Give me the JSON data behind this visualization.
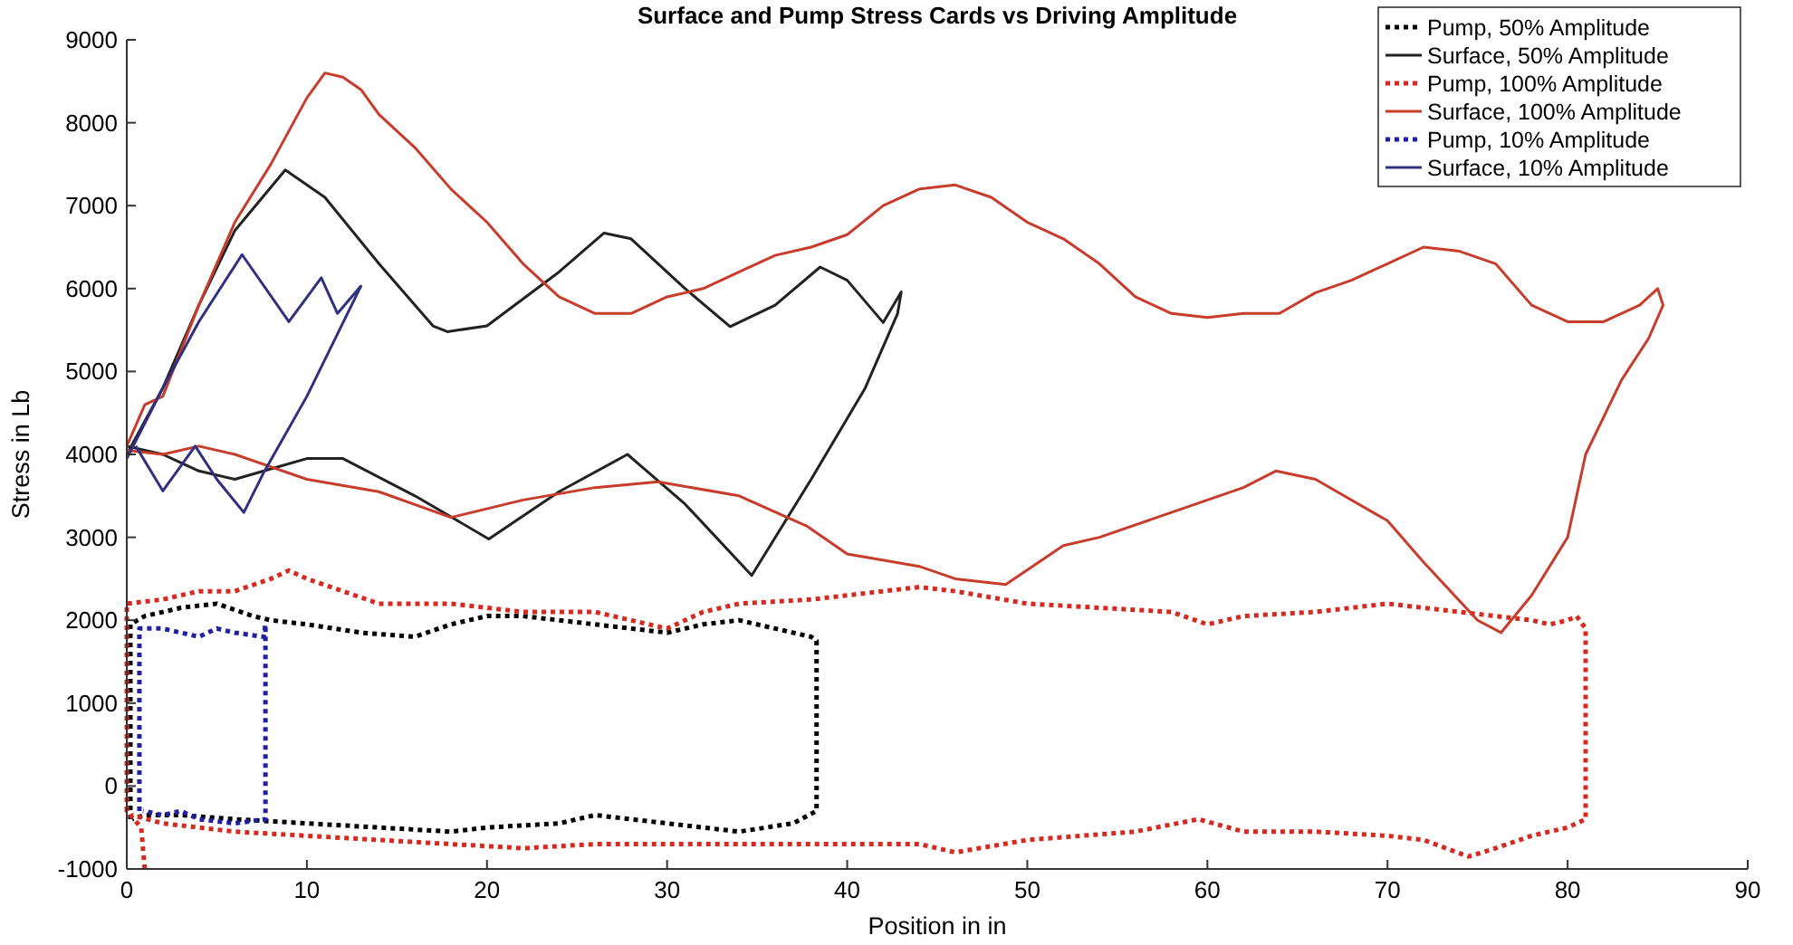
{
  "chart_data": {
    "type": "line",
    "title": "Surface and Pump Stress Cards vs Driving Amplitude",
    "xlabel": "Position in in",
    "ylabel": "Stress in Lb",
    "xlim": [
      0,
      90
    ],
    "xticks": [
      0,
      10,
      20,
      30,
      40,
      50,
      60,
      70,
      80,
      90
    ],
    "ylim": [
      -1000,
      9000
    ],
    "yticks": [
      -1000,
      0,
      1000,
      2000,
      3000,
      4000,
      5000,
      6000,
      7000,
      8000,
      9000
    ],
    "grid": false,
    "legend": "top right",
    "series": [
      {
        "name": "Pump, 50% Amplitude",
        "color": "#000000",
        "line_style": "dotted",
        "x": [
          0.2,
          0.2,
          1,
          3,
          5,
          7,
          8,
          10,
          13,
          16,
          18,
          20,
          22,
          24,
          26,
          28,
          30,
          32,
          34,
          36,
          38,
          38.3,
          38.3,
          37,
          34,
          30,
          26,
          24,
          20,
          18,
          14,
          10,
          6,
          3,
          1,
          0.3
        ],
        "values": [
          -400,
          1950,
          2050,
          2150,
          2200,
          2050,
          2000,
          1950,
          1850,
          1800,
          1950,
          2050,
          2050,
          2000,
          1950,
          1900,
          1850,
          1950,
          2000,
          1900,
          1800,
          1750,
          -300,
          -450,
          -550,
          -450,
          -350,
          -450,
          -500,
          -550,
          -500,
          -450,
          -400,
          -350,
          -350,
          -400
        ]
      },
      {
        "name": "Surface, 50% Amplitude",
        "color": "#222222",
        "line_style": "solid",
        "x": [
          0,
          2,
          4,
          6,
          8.8,
          11,
          14,
          17,
          17.8,
          20,
          24,
          26.5,
          28,
          31,
          33.5,
          36,
          38.5,
          40,
          42,
          43,
          42.8,
          41,
          38,
          34.7,
          31,
          27.8,
          24,
          20.1,
          16,
          12,
          10,
          6,
          4,
          2,
          0
        ],
        "values": [
          4000,
          4800,
          5800,
          6700,
          7430,
          7100,
          6300,
          5550,
          5480,
          5550,
          6200,
          6670,
          6600,
          6000,
          5540,
          5800,
          6260,
          6100,
          5590,
          5960,
          5700,
          4800,
          3700,
          2540,
          3400,
          4000,
          3550,
          2980,
          3500,
          3950,
          3950,
          3700,
          3800,
          4000,
          4100
        ]
      },
      {
        "name": "Pump, 100% Amplitude",
        "color": "#d42a20",
        "line_style": "dotted",
        "x": [
          1,
          0.8,
          0,
          0,
          2,
          4,
          6,
          8,
          9,
          10,
          12,
          14,
          18,
          22,
          26,
          28,
          30,
          32,
          34,
          38,
          42,
          44,
          46,
          50,
          54,
          58,
          60,
          62,
          66,
          70,
          74,
          78,
          79,
          80,
          80.5,
          81,
          81,
          80,
          78,
          76,
          74.5,
          72,
          70,
          66,
          62,
          59.5,
          56,
          50,
          46,
          44,
          40,
          36,
          30,
          26,
          22,
          18,
          14,
          10,
          6,
          2,
          0.3
        ],
        "values": [
          -1000,
          -500,
          -300,
          2200,
          2250,
          2350,
          2350,
          2500,
          2600,
          2500,
          2350,
          2200,
          2200,
          2100,
          2100,
          2000,
          1900,
          2100,
          2200,
          2250,
          2350,
          2400,
          2350,
          2200,
          2150,
          2100,
          1950,
          2050,
          2100,
          2200,
          2100,
          2000,
          1950,
          2000,
          2050,
          1900,
          -400,
          -500,
          -600,
          -750,
          -850,
          -650,
          -600,
          -550,
          -550,
          -400,
          -550,
          -650,
          -800,
          -700,
          -700,
          -700,
          -700,
          -700,
          -750,
          -700,
          -650,
          -600,
          -550,
          -450,
          -350
        ]
      },
      {
        "name": "Surface, 100% Amplitude",
        "color": "#c83c2c",
        "line_style": "solid",
        "x": [
          0,
          1,
          2,
          4,
          6,
          8,
          10,
          11,
          12,
          13,
          14,
          16,
          18,
          20,
          22,
          24,
          26,
          28,
          30,
          32,
          34,
          36,
          38,
          40,
          42,
          44,
          46,
          48,
          50,
          52,
          54,
          56,
          58,
          60,
          62,
          64,
          66,
          68,
          70,
          72,
          74,
          76,
          78,
          80,
          82,
          84,
          85,
          85.3,
          84.5,
          83,
          81,
          80,
          78,
          76.3,
          75,
          72,
          70,
          66,
          63.8,
          62,
          58,
          54,
          52,
          48.8,
          46,
          44,
          40,
          37.8,
          34,
          29.5,
          26,
          22,
          18,
          14,
          10,
          6,
          4,
          2,
          0
        ],
        "values": [
          4100,
          4600,
          4700,
          5800,
          6800,
          7500,
          8300,
          8600,
          8550,
          8400,
          8100,
          7700,
          7200,
          6800,
          6300,
          5900,
          5700,
          5700,
          5900,
          6000,
          6200,
          6400,
          6500,
          6650,
          7000,
          7200,
          7250,
          7100,
          6800,
          6600,
          6300,
          5900,
          5700,
          5650,
          5700,
          5700,
          5950,
          6100,
          6300,
          6500,
          6450,
          6300,
          5800,
          5600,
          5600,
          5800,
          6000,
          5800,
          5400,
          4900,
          4000,
          3000,
          2300,
          1850,
          2000,
          2700,
          3200,
          3700,
          3800,
          3600,
          3300,
          3000,
          2900,
          2430,
          2500,
          2650,
          2800,
          3130,
          3500,
          3670,
          3600,
          3450,
          3240,
          3550,
          3700,
          4000,
          4100,
          4000,
          4050
        ]
      },
      {
        "name": "Pump, 10% Amplitude",
        "color": "#2020a0",
        "line_style": "dotted",
        "x": [
          0.7,
          0.7,
          2,
          4,
          5,
          6,
          7.6,
          7.7,
          7.7,
          6,
          4,
          3,
          2,
          0.9
        ],
        "values": [
          -300,
          1900,
          1900,
          1800,
          1900,
          1850,
          1800,
          1950,
          -400,
          -450,
          -400,
          -300,
          -350,
          -300
        ]
      },
      {
        "name": "Surface, 10% Amplitude",
        "color": "#303080",
        "line_style": "solid",
        "x": [
          0,
          2,
          4,
          6.4,
          9,
          10.8,
          11.7,
          13,
          10,
          7.6,
          6.5,
          5,
          3.8,
          2,
          0.5
        ],
        "values": [
          3950,
          4800,
          5600,
          6410,
          5600,
          6130,
          5700,
          6030,
          4700,
          3780,
          3300,
          3700,
          4100,
          3560,
          4100
        ]
      }
    ]
  }
}
